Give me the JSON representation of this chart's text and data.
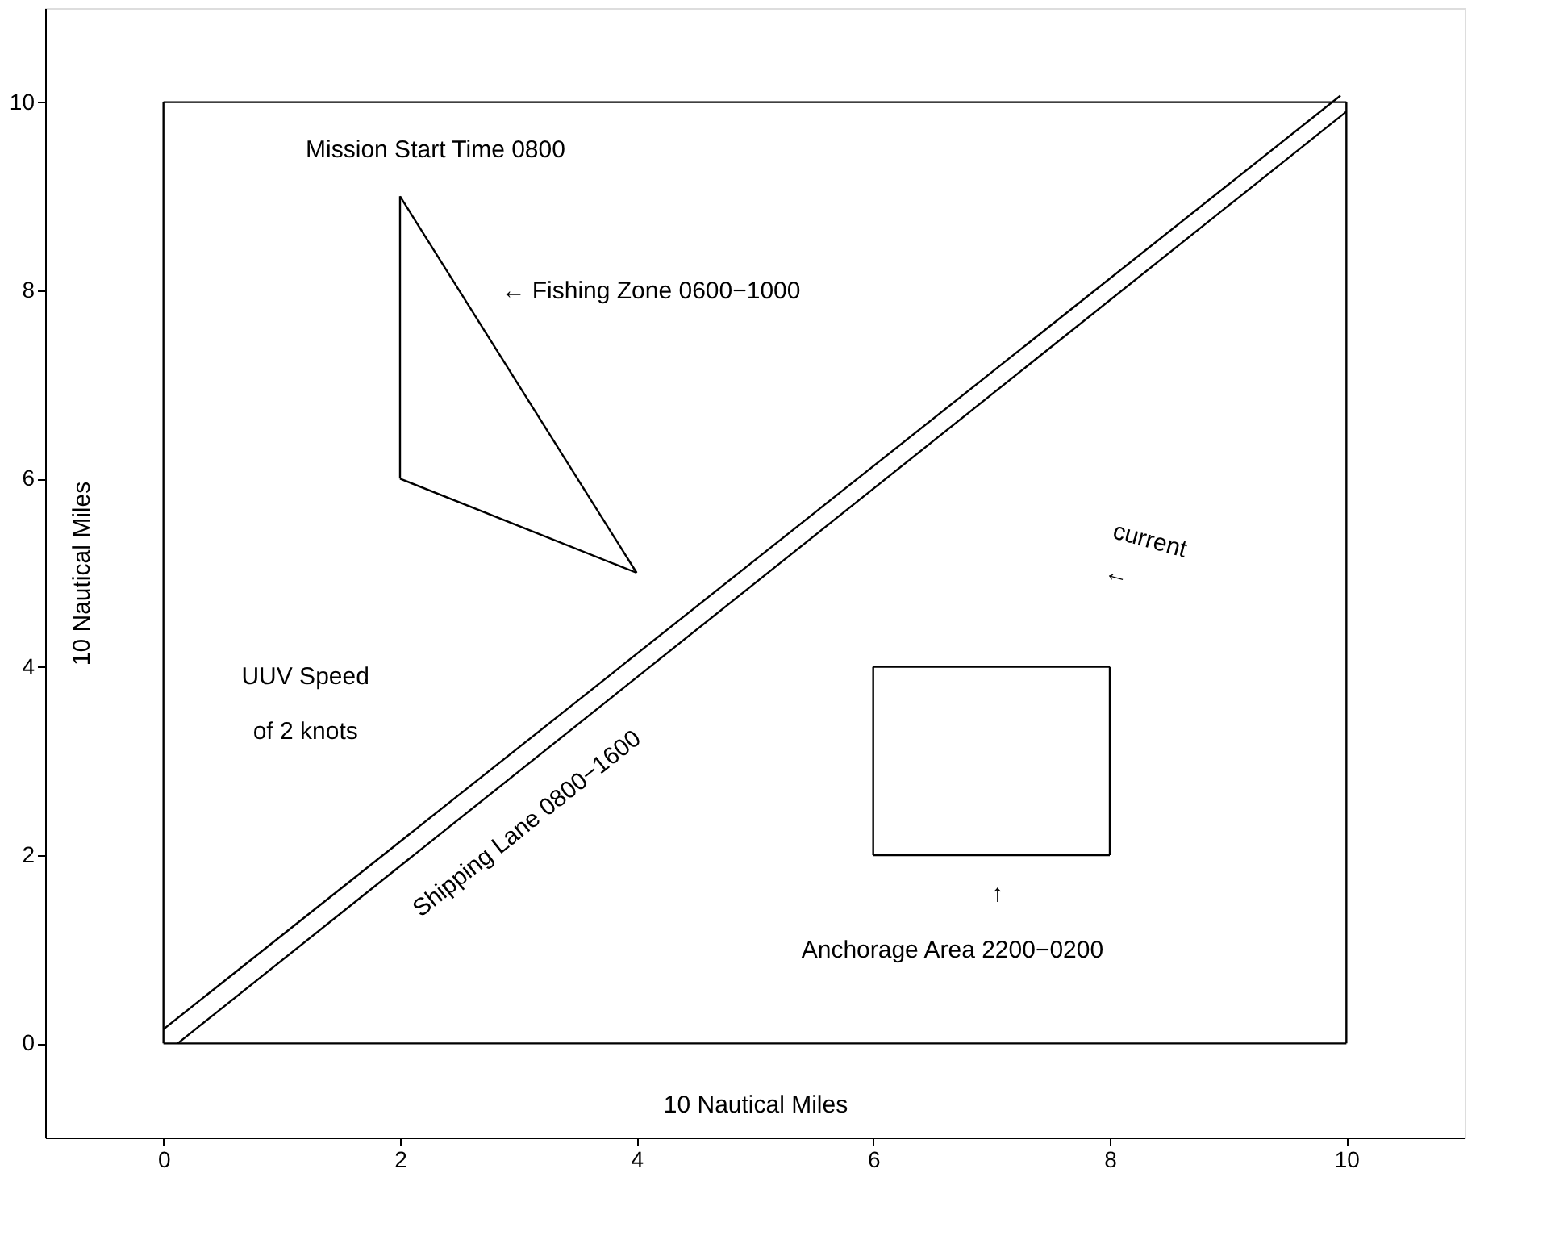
{
  "chart_data": {
    "type": "line",
    "xlabel": "10 Nautical Miles",
    "ylabel": "10 Nautical Miles",
    "xlim": [
      -1,
      11
    ],
    "ylim": [
      -1,
      11
    ],
    "xticks": [
      0,
      2,
      4,
      6,
      8,
      10
    ],
    "yticks": [
      0,
      2,
      4,
      6,
      8,
      10
    ],
    "grid": false,
    "marker": "none",
    "line_style": "solid",
    "series": [
      {
        "color": "#000000",
        "x": [
          0,
          10
        ],
        "values": [
          0,
          0
        ]
      },
      {
        "color": "#000000",
        "x": [
          10,
          10
        ],
        "values": [
          0,
          10
        ]
      },
      {
        "color": "#000000",
        "x": [
          0,
          10
        ],
        "values": [
          10,
          10
        ]
      },
      {
        "color": "#000000",
        "x": [
          0,
          0
        ],
        "values": [
          0,
          10
        ]
      },
      {
        "color": "#000000",
        "x": [
          2,
          2
        ],
        "values": [
          6,
          9
        ]
      },
      {
        "color": "#000000",
        "x": [
          2,
          4
        ],
        "values": [
          6,
          5
        ]
      },
      {
        "color": "#000000",
        "x": [
          2,
          4
        ],
        "values": [
          9,
          5
        ]
      },
      {
        "color": "#000000",
        "x": [
          6,
          8
        ],
        "values": [
          2,
          2
        ]
      },
      {
        "color": "#000000",
        "x": [
          8,
          8
        ],
        "values": [
          2,
          4
        ]
      },
      {
        "color": "#000000",
        "x": [
          6,
          8
        ],
        "values": [
          4,
          4
        ]
      },
      {
        "color": "#000000",
        "x": [
          6,
          6
        ],
        "values": [
          2,
          4
        ]
      },
      {
        "color": "#000000",
        "x": [
          0,
          9.95
        ],
        "values": [
          0.15,
          10.07
        ]
      },
      {
        "color": "#000000",
        "x": [
          0.12,
          10
        ],
        "values": [
          0,
          9.9
        ]
      }
    ],
    "annotations": [
      "Mission Start Time 0800",
      "← Fishing Zone 0600−1000",
      "UUV Speed\nof 2 knots",
      "Anchorage Area 2200−0200",
      "Shipping Lane 0800−1600",
      "↑",
      "current",
      "←"
    ]
  }
}
